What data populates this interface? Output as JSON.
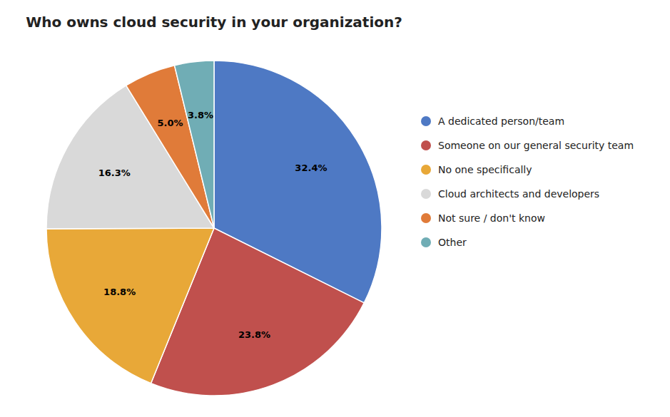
{
  "chart_data": {
    "type": "pie",
    "title": "Who owns cloud security in your organization?",
    "categories": [
      "A dedicated person/team",
      "Someone on our general security team",
      "No one specifically",
      "Cloud architects and developers",
      "Not sure / don't know",
      "Other"
    ],
    "values": [
      32.4,
      23.8,
      18.8,
      16.3,
      5.0,
      3.8
    ],
    "value_labels": [
      "32.4%",
      "23.8%",
      "18.8%",
      "16.3%",
      "5.0%",
      "3.8%"
    ],
    "colors": [
      "#4E79C4",
      "#C0504D",
      "#E8A838",
      "#D9D9D9",
      "#E07B39",
      "#70ADB5"
    ],
    "data_labels": true,
    "legend": "right"
  }
}
